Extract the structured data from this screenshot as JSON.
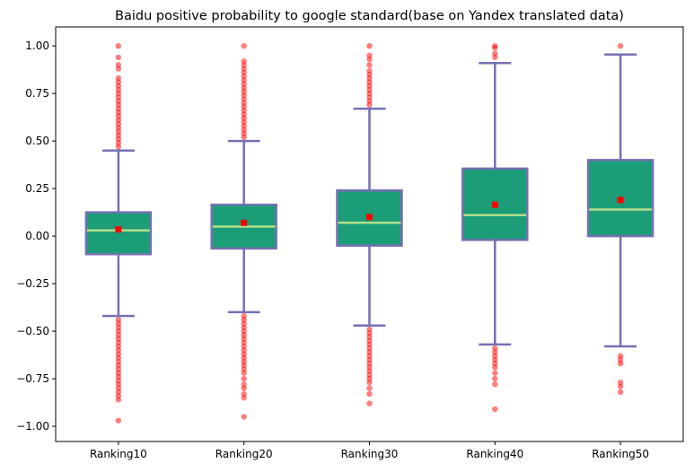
{
  "chart_data": {
    "type": "box",
    "title": "Baidu positive probability to google standard(base on Yandex translated data)",
    "xlabel": "",
    "ylabel": "",
    "categories": [
      "Ranking10",
      "Ranking20",
      "Ranking30",
      "Ranking40",
      "Ranking50"
    ],
    "ylim": [
      -1.08,
      1.1
    ],
    "yticks": [
      1.0,
      0.75,
      0.5,
      0.25,
      0.0,
      -0.25,
      -0.5,
      -0.75,
      -1.0
    ],
    "ytick_labels": [
      "1.00",
      "0.75",
      "0.50",
      "0.25",
      "0.00",
      "−0.25",
      "−0.50",
      "−0.75",
      "−1.00"
    ],
    "grid": false,
    "boxes": [
      {
        "category": "Ranking10",
        "whisker_low": -0.42,
        "q1": -0.095,
        "median": 0.03,
        "q3": 0.125,
        "whisker_high": 0.45,
        "mean": 0.035,
        "outliers_high": [
          0.47,
          0.49,
          0.51,
          0.53,
          0.55,
          0.57,
          0.59,
          0.61,
          0.63,
          0.65,
          0.67,
          0.69,
          0.71,
          0.73,
          0.75,
          0.77,
          0.79,
          0.81,
          0.83,
          0.88,
          0.9,
          0.94,
          1.0
        ],
        "outliers_low": [
          -0.44,
          -0.46,
          -0.48,
          -0.5,
          -0.52,
          -0.54,
          -0.56,
          -0.58,
          -0.6,
          -0.62,
          -0.64,
          -0.66,
          -0.68,
          -0.7,
          -0.72,
          -0.74,
          -0.76,
          -0.78,
          -0.8,
          -0.82,
          -0.84,
          -0.86,
          -0.97
        ]
      },
      {
        "category": "Ranking20",
        "whisker_low": -0.4,
        "q1": -0.065,
        "median": 0.05,
        "q3": 0.165,
        "whisker_high": 0.5,
        "mean": 0.07,
        "outliers_high": [
          0.52,
          0.54,
          0.56,
          0.58,
          0.6,
          0.62,
          0.64,
          0.66,
          0.68,
          0.7,
          0.72,
          0.74,
          0.76,
          0.78,
          0.8,
          0.82,
          0.84,
          0.86,
          0.88,
          0.9,
          0.92,
          1.0
        ],
        "outliers_low": [
          -0.42,
          -0.44,
          -0.46,
          -0.48,
          -0.5,
          -0.52,
          -0.54,
          -0.56,
          -0.58,
          -0.6,
          -0.62,
          -0.64,
          -0.66,
          -0.68,
          -0.7,
          -0.72,
          -0.75,
          -0.78,
          -0.8,
          -0.83,
          -0.85,
          -0.95
        ]
      },
      {
        "category": "Ranking30",
        "whisker_low": -0.47,
        "q1": -0.05,
        "median": 0.07,
        "q3": 0.24,
        "whisker_high": 0.67,
        "mean": 0.1,
        "outliers_high": [
          0.69,
          0.71,
          0.73,
          0.75,
          0.77,
          0.79,
          0.81,
          0.83,
          0.85,
          0.87,
          0.9,
          0.93,
          0.95,
          1.0
        ],
        "outliers_low": [
          -0.49,
          -0.51,
          -0.53,
          -0.55,
          -0.57,
          -0.59,
          -0.61,
          -0.63,
          -0.65,
          -0.67,
          -0.69,
          -0.71,
          -0.73,
          -0.75,
          -0.77,
          -0.8,
          -0.83,
          -0.88
        ]
      },
      {
        "category": "Ranking40",
        "whisker_low": -0.57,
        "q1": -0.02,
        "median": 0.11,
        "q3": 0.355,
        "whisker_high": 0.91,
        "mean": 0.165,
        "outliers_high": [
          0.94,
          0.96,
          0.99,
          1.0
        ],
        "outliers_low": [
          -0.59,
          -0.61,
          -0.63,
          -0.65,
          -0.67,
          -0.69,
          -0.72,
          -0.75,
          -0.78,
          -0.91
        ]
      },
      {
        "category": "Ranking50",
        "whisker_low": -0.58,
        "q1": 0.0,
        "median": 0.14,
        "q3": 0.4,
        "whisker_high": 0.955,
        "mean": 0.19,
        "outliers_high": [
          1.0
        ],
        "outliers_low": [
          -0.63,
          -0.65,
          -0.67,
          -0.77,
          -0.79,
          -0.82
        ]
      }
    ],
    "colors": {
      "box_fill": "#1b9e77",
      "box_edge": "#7570b3",
      "median": "#b2df8a",
      "mean": "#ff0000",
      "outlier": "#ff0000"
    }
  }
}
